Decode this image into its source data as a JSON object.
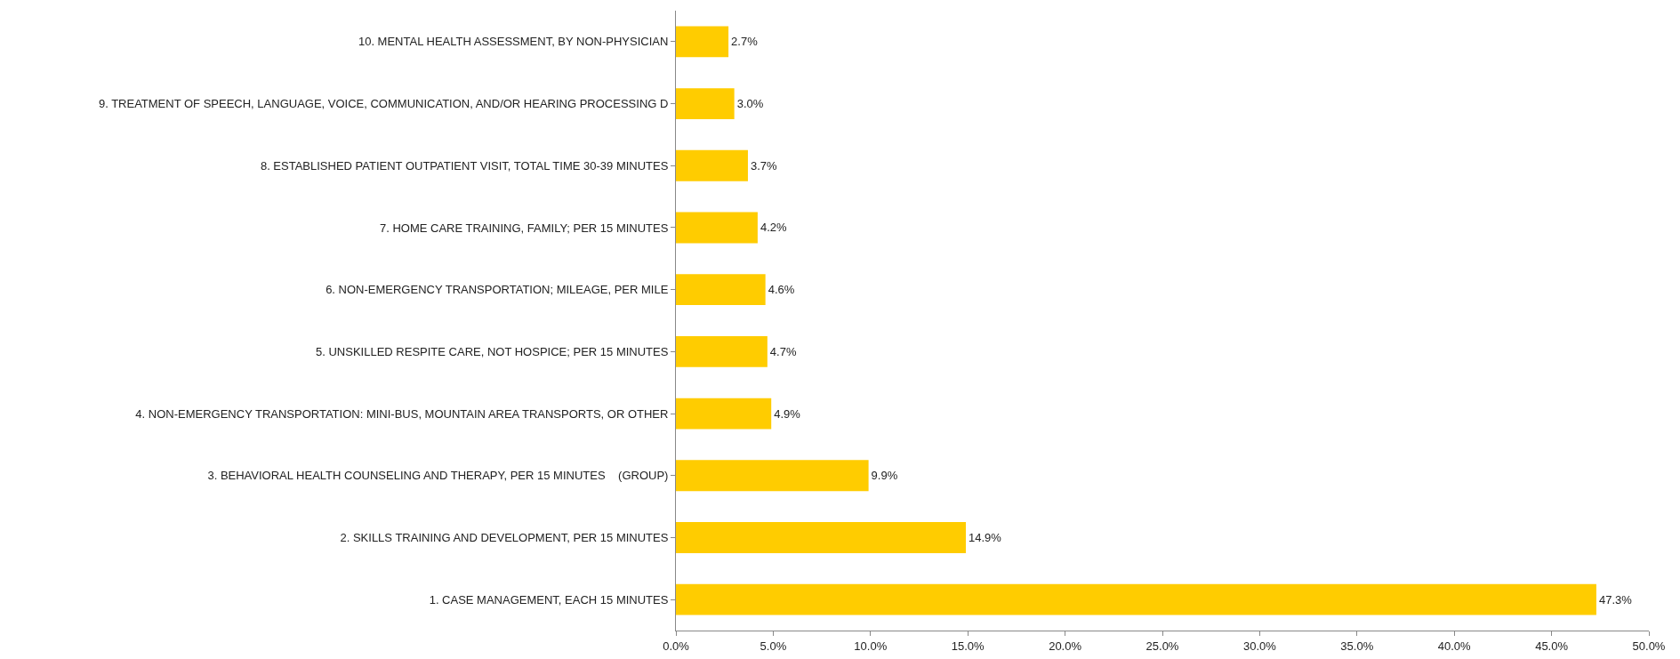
{
  "chart_data": {
    "type": "bar",
    "orientation": "horizontal",
    "categories": [
      "10. MENTAL HEALTH ASSESSMENT, BY NON-PHYSICIAN",
      "9. TREATMENT OF SPEECH, LANGUAGE, VOICE, COMMUNICATION, AND/OR HEARING PROCESSING D",
      "8. ESTABLISHED PATIENT OUTPATIENT VISIT, TOTAL TIME 30-39 MINUTES",
      "7. HOME CARE TRAINING, FAMILY; PER 15 MINUTES",
      "6. NON-EMERGENCY TRANSPORTATION; MILEAGE, PER MILE",
      "5. UNSKILLED RESPITE CARE, NOT HOSPICE; PER 15 MINUTES",
      "4. NON-EMERGENCY TRANSPORTATION: MINI-BUS, MOUNTAIN AREA TRANSPORTS, OR OTHER",
      "3. BEHAVIORAL HEALTH COUNSELING AND THERAPY, PER 15 MINUTES    (GROUP)",
      "2. SKILLS TRAINING AND DEVELOPMENT, PER 15 MINUTES",
      "1. CASE MANAGEMENT, EACH 15 MINUTES"
    ],
    "values": [
      2.7,
      3.0,
      3.7,
      4.2,
      4.6,
      4.7,
      4.9,
      9.9,
      14.9,
      47.3
    ],
    "value_labels": [
      "2.7%",
      "3.0%",
      "3.7%",
      "4.2%",
      "4.6%",
      "4.7%",
      "4.9%",
      "9.9%",
      "14.9%",
      "47.3%"
    ],
    "color": "#ffcc00",
    "xlim": [
      0,
      50
    ],
    "xticks": [
      {
        "value": 0,
        "label": "0.0%"
      },
      {
        "value": 5,
        "label": "5.0%"
      },
      {
        "value": 10,
        "label": "10.0%"
      },
      {
        "value": 15,
        "label": "15.0%"
      },
      {
        "value": 20,
        "label": "20.0%"
      },
      {
        "value": 25,
        "label": "25.0%"
      },
      {
        "value": 30,
        "label": "30.0%"
      },
      {
        "value": 35,
        "label": "35.0%"
      },
      {
        "value": 40,
        "label": "40.0%"
      },
      {
        "value": 45,
        "label": "45.0%"
      },
      {
        "value": 50,
        "label": "50.0%"
      }
    ],
    "grid": false,
    "legend": false
  }
}
